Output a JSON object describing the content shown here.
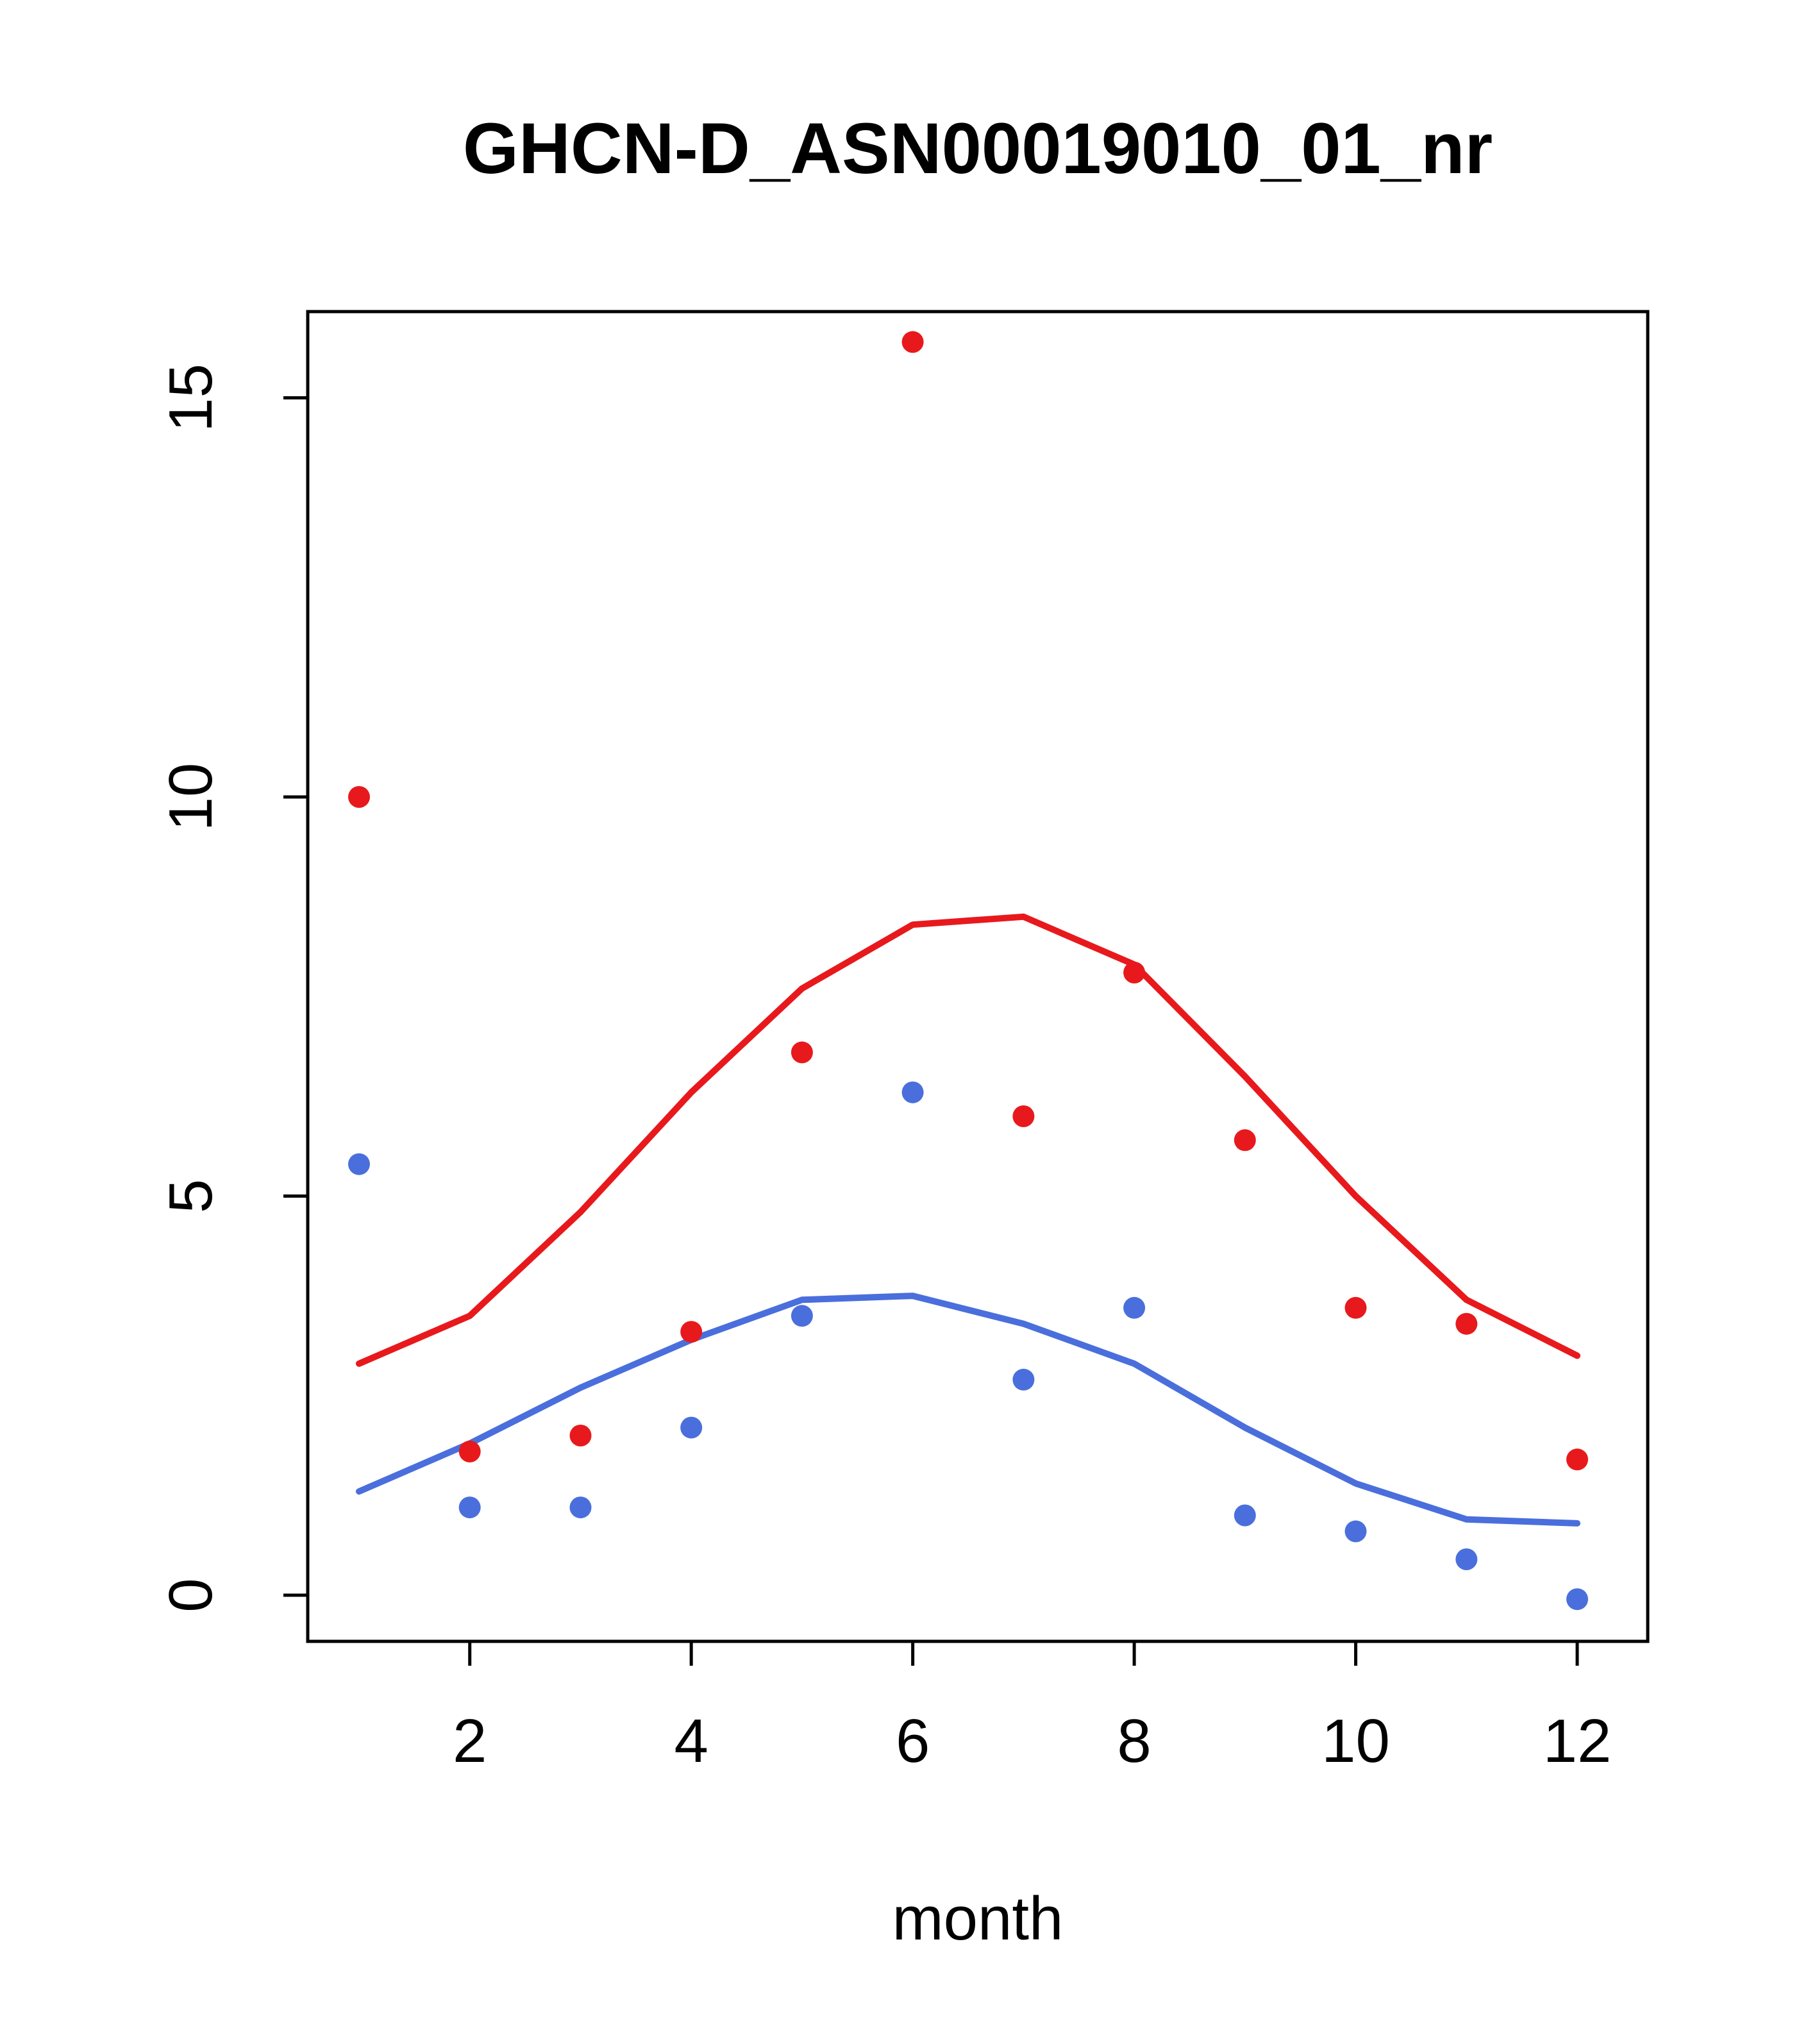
{
  "chart_data": {
    "type": "scatter",
    "title": "GHCN-D_ASN00019010_01_nr",
    "xlabel": "month",
    "ylabel": "",
    "x": [
      1,
      2,
      3,
      4,
      5,
      6,
      7,
      8,
      9,
      10,
      11,
      12
    ],
    "x_ticks": [
      2,
      4,
      6,
      8,
      10,
      12
    ],
    "y_ticks": [
      0,
      5,
      10,
      15
    ],
    "xlim": [
      0.56,
      12.44
    ],
    "ylim": [
      -0.6,
      16.1
    ],
    "grid": false,
    "legend": "none",
    "colors": {
      "red": "#e8191c",
      "blue": "#4a6fdc",
      "axis": "#000000"
    },
    "series": [
      {
        "name": "red-line",
        "kind": "line",
        "color": "#e8191c",
        "values": [
          2.9,
          3.5,
          4.8,
          6.3,
          7.6,
          8.4,
          8.5,
          7.9,
          6.5,
          5.0,
          3.7,
          3.0
        ]
      },
      {
        "name": "blue-line",
        "kind": "line",
        "color": "#4a6fdc",
        "values": [
          1.3,
          1.9,
          2.6,
          3.2,
          3.7,
          3.75,
          3.4,
          2.9,
          2.1,
          1.4,
          0.95,
          0.9
        ]
      },
      {
        "name": "red-points",
        "kind": "points",
        "color": "#e8191c",
        "values": [
          10.0,
          1.8,
          2.0,
          3.3,
          6.8,
          15.7,
          6.0,
          7.8,
          5.7,
          3.6,
          3.4,
          1.7
        ]
      },
      {
        "name": "blue-points",
        "kind": "points",
        "color": "#4a6fdc",
        "values": [
          5.4,
          1.1,
          1.1,
          2.1,
          3.5,
          6.3,
          2.7,
          3.6,
          1.0,
          0.8,
          0.45,
          -0.05
        ]
      }
    ]
  }
}
